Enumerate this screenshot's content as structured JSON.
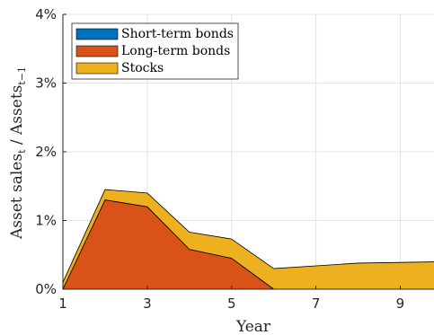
{
  "chart_data": {
    "type": "area",
    "stacked": true,
    "x": [
      1,
      2,
      3,
      4,
      5,
      6,
      7,
      8,
      9,
      10
    ],
    "series": [
      {
        "name": "Short-term bonds",
        "color": "#0072BD",
        "values": [
          0,
          0,
          0,
          0,
          0,
          0,
          0,
          0,
          0,
          0
        ]
      },
      {
        "name": "Long-term bonds",
        "color": "#D95319",
        "values": [
          0,
          1.3,
          1.2,
          0.58,
          0.45,
          0,
          0,
          0,
          0,
          0
        ]
      },
      {
        "name": "Stocks",
        "color": "#EDB120",
        "values": [
          0.1,
          0.15,
          0.2,
          0.25,
          0.28,
          0.3,
          0.34,
          0.38,
          0.39,
          0.4
        ]
      }
    ],
    "xlabel": "Year",
    "ylabel_main": "Asset sales",
    "ylabel_sub1": "t",
    "ylabel_mid": " / Assets",
    "ylabel_sub2": "t−1",
    "xlim": [
      1,
      9.8
    ],
    "ylim": [
      0,
      4
    ],
    "xticks": [
      "1",
      "3",
      "5",
      "7",
      "9"
    ],
    "yticks": [
      "0%",
      "1%",
      "2%",
      "3%",
      "4%"
    ],
    "grid": true,
    "legend_position": "top-left"
  }
}
